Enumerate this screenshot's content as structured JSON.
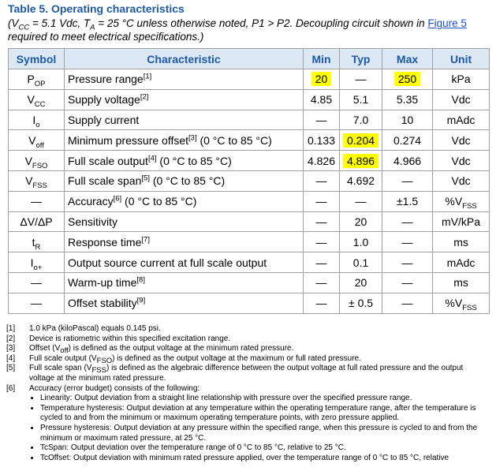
{
  "table_title": "Table 5. Operating characteristics",
  "subtitle": [
    "(V",
    {
      "sub": "CC"
    },
    " = 5.1 Vdc, T",
    {
      "sub": "A"
    },
    " = 25 °C unless otherwise noted, P1 > P2. Decoupling circuit shown in ",
    {
      "link": "Figure 5"
    },
    " required to meet electrical specifications.)"
  ],
  "table": {
    "headers": [
      "Symbol",
      "Characteristic",
      "Min",
      "Typ",
      "Max",
      "Unit"
    ],
    "rows": [
      {
        "symbol": [
          "P",
          {
            "sub": "OP"
          }
        ],
        "characteristic": [
          "Pressure range",
          {
            "sup": "[1]"
          }
        ],
        "min": "20",
        "typ": "—",
        "max": "250",
        "unit": [
          "kPa"
        ],
        "highlight": [
          "min",
          "max"
        ]
      },
      {
        "symbol": [
          "V",
          {
            "sub": "CC"
          }
        ],
        "characteristic": [
          "Supply voltage",
          {
            "sup": "[2]"
          }
        ],
        "min": "4.85",
        "typ": "5.1",
        "max": "5.35",
        "unit": [
          "Vdc"
        ]
      },
      {
        "symbol": [
          "I",
          {
            "sub": "o"
          }
        ],
        "characteristic": [
          "Supply current"
        ],
        "min": "—",
        "typ": "7.0",
        "max": "10",
        "unit": [
          "mAdc"
        ]
      },
      {
        "symbol": [
          "V",
          {
            "sub": "off"
          }
        ],
        "characteristic": [
          "Minimum pressure offset",
          {
            "sup": "[3]"
          },
          " (0 °C to 85 °C)"
        ],
        "min": "0.133",
        "typ": "0.204",
        "max": "0.274",
        "unit": [
          "Vdc"
        ],
        "highlight": [
          "typ"
        ]
      },
      {
        "symbol": [
          "V",
          {
            "sub": "FSO"
          }
        ],
        "characteristic": [
          "Full scale output",
          {
            "sup": "[4]"
          },
          " (0 °C to 85 °C)"
        ],
        "min": "4.826",
        "typ": "4.896",
        "max": "4.966",
        "unit": [
          "Vdc"
        ],
        "highlight": [
          "typ"
        ]
      },
      {
        "symbol": [
          "V",
          {
            "sub": "FSS"
          }
        ],
        "characteristic": [
          "Full scale span",
          {
            "sup": "[5]"
          },
          " (0 °C to 85 °C)"
        ],
        "min": "—",
        "typ": "4.692",
        "max": "—",
        "unit": [
          "Vdc"
        ]
      },
      {
        "symbol": [
          "—"
        ],
        "characteristic": [
          "Accuracy",
          {
            "sup": "[6]"
          },
          " (0 °C to 85 °C)"
        ],
        "min": "—",
        "typ": "—",
        "max": "±1.5",
        "unit": [
          "%V",
          {
            "sub": "FSS"
          }
        ]
      },
      {
        "symbol": [
          "ΔV/ΔP"
        ],
        "characteristic": [
          "Sensitivity"
        ],
        "min": "—",
        "typ": "20",
        "max": "—",
        "unit": [
          "mV/kPa"
        ]
      },
      {
        "symbol": [
          "t",
          {
            "sub": "R"
          }
        ],
        "characteristic": [
          "Response time",
          {
            "sup": "[7]"
          }
        ],
        "min": "—",
        "typ": "1.0",
        "max": "—",
        "unit": [
          "ms"
        ]
      },
      {
        "symbol": [
          "I",
          {
            "sub": "o+"
          }
        ],
        "characteristic": [
          "Output source current at full scale output"
        ],
        "min": "—",
        "typ": "0.1",
        "max": "—",
        "unit": [
          "mAdc"
        ]
      },
      {
        "symbol": [
          "—"
        ],
        "characteristic": [
          "Warm-up time",
          {
            "sup": "[8]"
          }
        ],
        "min": "—",
        "typ": "20",
        "max": "—",
        "unit": [
          "ms"
        ]
      },
      {
        "symbol": [
          "—"
        ],
        "characteristic": [
          "Offset stability",
          {
            "sup": "[9]"
          }
        ],
        "min": "—",
        "typ": "± 0.5",
        "max": "—",
        "unit": [
          "%V",
          {
            "sub": "FSS"
          }
        ]
      }
    ]
  },
  "footnotes": [
    {
      "mark": "[1]",
      "text": [
        "1.0 kPa (kiloPascal) equals 0.145 psi."
      ]
    },
    {
      "mark": "[2]",
      "text": [
        "Device is ratiometric within this specified excitation range."
      ]
    },
    {
      "mark": "[3]",
      "text": [
        "Offset (V",
        {
          "sub": "off"
        },
        ") is defined as the output voltage at the minimum rated pressure."
      ]
    },
    {
      "mark": "[4]",
      "text": [
        "Full scale output (V",
        {
          "sub": "FSO"
        },
        ") is defined as the output voltage at the maximum or full rated pressure."
      ]
    },
    {
      "mark": "[5]",
      "text": [
        "Full scale span (V",
        {
          "sub": "FSS"
        },
        ") is defined as the algebraic difference between the output voltage at full rated pressure and the output voltage at the minimum rated pressure."
      ]
    },
    {
      "mark": "[6]",
      "text": [
        "Accuracy (error budget) consists of the following:"
      ],
      "bullets": [
        "Linearity: Output deviation from a straight line relationship with pressure over the specified pressure range.",
        "Temperature hysteresis: Output deviation at any temperature within the operating temperature range, after the temperature is cycled to and from the minimum or maximum operating temperature points, with zero pressure applied.",
        "Pressure hysteresis: Output deviation at any pressure within the specified range, when this pressure is cycled to and from the minimum or maximum rated pressure, at 25 °C.",
        "TcSpan: Output deviation over the temperature range of 0 °C to 85 °C, relative to 25 °C.",
        "TcOffset: Output deviation with minimum rated pressure applied, over the temperature range of 0 °C to 85 °C, relative"
      ]
    }
  ]
}
